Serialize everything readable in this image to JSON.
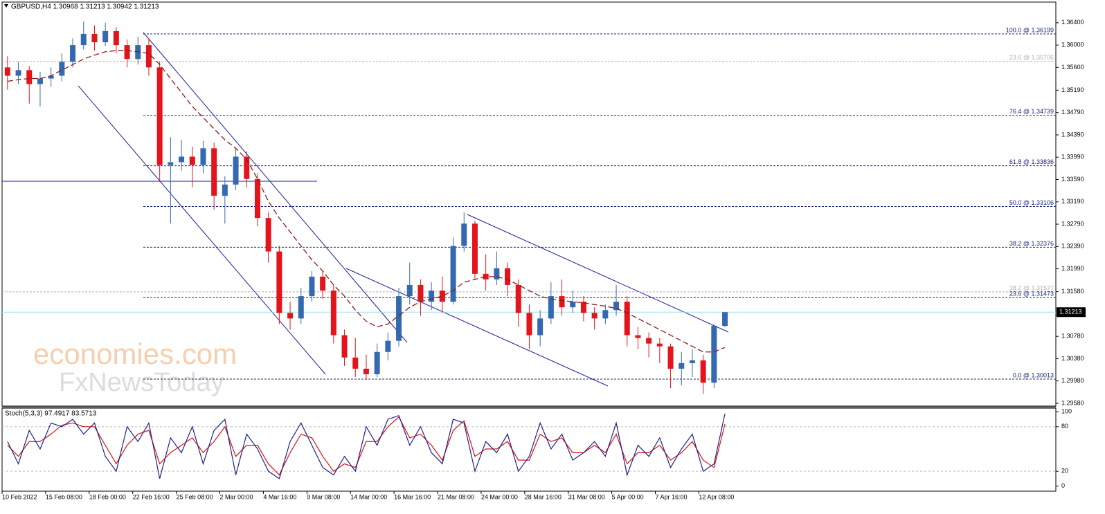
{
  "chart_data": {
    "type": "candlestick",
    "title": "GBPUSD,H4  1.30968 1.31213 1.30942 1.31213",
    "up_color": "#3468b0",
    "down_color": "#e3141c",
    "ylim": [
      1.2953,
      1.3677
    ],
    "yticks": [
      {
        "value": 1.364,
        "label": "1.36400"
      },
      {
        "value": 1.36,
        "label": "1.36000"
      },
      {
        "value": 1.356,
        "label": "1.35600"
      },
      {
        "value": 1.3519,
        "label": "1.35190"
      },
      {
        "value": 1.3479,
        "label": "1.34790"
      },
      {
        "value": 1.3439,
        "label": "1.34390"
      },
      {
        "value": 1.3399,
        "label": "1.33990"
      },
      {
        "value": 1.3359,
        "label": "1.33590"
      },
      {
        "value": 1.3319,
        "label": "1.33190"
      },
      {
        "value": 1.3279,
        "label": "1.32790"
      },
      {
        "value": 1.3239,
        "label": "1.32390"
      },
      {
        "value": 1.3199,
        "label": "1.31990"
      },
      {
        "value": 1.3158,
        "label": "1.31580"
      },
      {
        "value": 1.3078,
        "label": "1.30780"
      },
      {
        "value": 1.3038,
        "label": "1.30380"
      },
      {
        "value": 1.2998,
        "label": "1.29980"
      },
      {
        "value": 1.2958,
        "label": "1.29580"
      }
    ],
    "current_price": {
      "value": 1.31213,
      "label": "1.31213"
    },
    "xlabels": [
      "10 Feb 2022",
      "15 Feb 08:00",
      "18 Feb 00:00",
      "22 Feb 16:00",
      "25 Feb 08:00",
      "2 Mar 00:00",
      "4 Mar 16:00",
      "9 Mar 08:00",
      "14 Mar 00:00",
      "16 Mar 16:00",
      "21 Mar 08:00",
      "24 Mar 00:00",
      "28 Mar 16:00",
      "31 Mar 08:00",
      "5 Apr 00:00",
      "7 Apr 16:00",
      "12 Apr 08:00"
    ],
    "candles": [
      [
        1.356,
        1.358,
        1.352,
        1.3545
      ],
      [
        1.3545,
        1.357,
        1.353,
        1.3555
      ],
      [
        1.3555,
        1.3562,
        1.3495,
        1.353
      ],
      [
        1.353,
        1.3552,
        1.349,
        1.354
      ],
      [
        1.354,
        1.356,
        1.3525,
        1.3545
      ],
      [
        1.3545,
        1.3585,
        1.3535,
        1.357
      ],
      [
        1.357,
        1.3612,
        1.356,
        1.36
      ],
      [
        1.36,
        1.3642,
        1.3592,
        1.362
      ],
      [
        1.362,
        1.3635,
        1.359,
        1.3605
      ],
      [
        1.3605,
        1.364,
        1.3598,
        1.3625
      ],
      [
        1.3625,
        1.3632,
        1.3585,
        1.36
      ],
      [
        1.36,
        1.361,
        1.356,
        1.3575
      ],
      [
        1.3575,
        1.3615,
        1.3565,
        1.36
      ],
      [
        1.36,
        1.3612,
        1.3545,
        1.356
      ],
      [
        1.356,
        1.357,
        1.3355,
        1.3385
      ],
      [
        1.3385,
        1.3435,
        1.328,
        1.339
      ],
      [
        1.339,
        1.343,
        1.3375,
        1.34
      ],
      [
        1.34,
        1.3418,
        1.3345,
        1.3385
      ],
      [
        1.3385,
        1.3428,
        1.337,
        1.3415
      ],
      [
        1.3415,
        1.3425,
        1.3305,
        1.333
      ],
      [
        1.333,
        1.3365,
        1.328,
        1.335
      ],
      [
        1.335,
        1.3415,
        1.334,
        1.34
      ],
      [
        1.34,
        1.341,
        1.3345,
        1.336
      ],
      [
        1.336,
        1.337,
        1.3275,
        1.329
      ],
      [
        1.329,
        1.33,
        1.321,
        1.323
      ],
      [
        1.323,
        1.324,
        1.31,
        1.312
      ],
      [
        1.312,
        1.314,
        1.309,
        1.311
      ],
      [
        1.311,
        1.3165,
        1.31,
        1.315
      ],
      [
        1.315,
        1.3195,
        1.314,
        1.3185
      ],
      [
        1.3185,
        1.3195,
        1.3145,
        1.316
      ],
      [
        1.316,
        1.317,
        1.3065,
        1.308
      ],
      [
        1.308,
        1.309,
        1.3025,
        1.304
      ],
      [
        1.304,
        1.3075,
        1.3005,
        1.302
      ],
      [
        1.302,
        1.3045,
        1.3,
        1.301
      ],
      [
        1.301,
        1.3065,
        1.3005,
        1.305
      ],
      [
        1.305,
        1.3085,
        1.3035,
        1.307
      ],
      [
        1.307,
        1.3165,
        1.306,
        1.315
      ],
      [
        1.315,
        1.321,
        1.3135,
        1.317
      ],
      [
        1.317,
        1.318,
        1.3115,
        1.314
      ],
      [
        1.314,
        1.3175,
        1.3125,
        1.316
      ],
      [
        1.316,
        1.3185,
        1.312,
        1.314
      ],
      [
        1.314,
        1.3255,
        1.3135,
        1.324
      ],
      [
        1.324,
        1.33,
        1.323,
        1.328
      ],
      [
        1.328,
        1.3285,
        1.318,
        1.319
      ],
      [
        1.319,
        1.3225,
        1.316,
        1.318
      ],
      [
        1.318,
        1.323,
        1.317,
        1.32
      ],
      [
        1.32,
        1.321,
        1.315,
        1.317
      ],
      [
        1.317,
        1.318,
        1.3095,
        1.312
      ],
      [
        1.312,
        1.3135,
        1.3055,
        1.308
      ],
      [
        1.308,
        1.3125,
        1.306,
        1.311
      ],
      [
        1.311,
        1.3175,
        1.31,
        1.315
      ],
      [
        1.315,
        1.318,
        1.3115,
        1.313
      ],
      [
        1.313,
        1.316,
        1.312,
        1.314
      ],
      [
        1.314,
        1.315,
        1.3105,
        1.312
      ],
      [
        1.312,
        1.313,
        1.309,
        1.311
      ],
      [
        1.311,
        1.3135,
        1.31,
        1.3125
      ],
      [
        1.3125,
        1.317,
        1.3115,
        1.314
      ],
      [
        1.314,
        1.315,
        1.306,
        1.308
      ],
      [
        1.308,
        1.3095,
        1.3055,
        1.3075
      ],
      [
        1.3075,
        1.3085,
        1.304,
        1.3065
      ],
      [
        1.3065,
        1.3075,
        1.303,
        1.306
      ],
      [
        1.306,
        1.3065,
        1.2985,
        1.302
      ],
      [
        1.302,
        1.305,
        1.299,
        1.303
      ],
      [
        1.303,
        1.3055,
        1.3005,
        1.3035
      ],
      [
        1.3035,
        1.3045,
        1.2975,
        1.2995
      ],
      [
        1.2995,
        1.31,
        1.2985,
        1.3097
      ],
      [
        1.30968,
        1.31213,
        1.30942,
        1.31213
      ]
    ],
    "ma": {
      "color": "#8b1a1a",
      "values": [
        1.3535,
        1.3538,
        1.354,
        1.354,
        1.3545,
        1.3555,
        1.3565,
        1.3575,
        1.3582,
        1.3588,
        1.359,
        1.359,
        1.3588,
        1.3585,
        1.3565,
        1.354,
        1.3515,
        1.349,
        1.347,
        1.345,
        1.343,
        1.3415,
        1.3395,
        1.336,
        1.332,
        1.329,
        1.3265,
        1.324,
        1.3215,
        1.3195,
        1.317,
        1.315,
        1.3125,
        1.3105,
        1.3095,
        1.31,
        1.3115,
        1.313,
        1.314,
        1.3145,
        1.315,
        1.316,
        1.3175,
        1.318,
        1.3185,
        1.3185,
        1.318,
        1.317,
        1.316,
        1.315,
        1.3145,
        1.3142,
        1.314,
        1.3138,
        1.3135,
        1.3132,
        1.3128,
        1.312,
        1.311,
        1.31,
        1.309,
        1.308,
        1.307,
        1.306,
        1.305,
        1.305,
        1.3058
      ]
    },
    "fib_levels": [
      {
        "value": 1.36199,
        "label": "100.0 @ 1.36199"
      },
      {
        "value": 1.34739,
        "label": "76.4 @ 1.34739"
      },
      {
        "value": 1.33836,
        "label": "61.8 @ 1.33836"
      },
      {
        "value": 1.33106,
        "label": "50.0 @ 1.33106"
      },
      {
        "value": 1.32376,
        "label": "38.2 @ 1.32376"
      },
      {
        "value": 1.31473,
        "label": "23.6 @ 1.31473"
      },
      {
        "value": 1.30013,
        "label": "0.0 @ 1.30013"
      }
    ],
    "fib_color": "#1a237e",
    "fib_levels_2": [
      {
        "value": 1.35706,
        "label": "23.6 @ 1.35706"
      },
      {
        "value": 1.31577,
        "label": "38.2 @ 1.31577"
      }
    ],
    "fib_color_2": "#b0b0b0",
    "watermark": [
      "economies.com",
      "FxNewsToday"
    ],
    "stoch": {
      "label": "Stoch(5,3,3) 97.4917 83.5713",
      "ylim": [
        -5,
        105
      ],
      "yticks": [
        100,
        80,
        20,
        0
      ],
      "levels": [
        80,
        20
      ],
      "series": [
        {
          "color": "#1f1f8f",
          "values": [
            60,
            30,
            75,
            50,
            85,
            80,
            90,
            70,
            85,
            40,
            20,
            80,
            60,
            85,
            10,
            65,
            45,
            80,
            30,
            75,
            90,
            15,
            70,
            50,
            20,
            10,
            60,
            85,
            55,
            25,
            15,
            40,
            20,
            80,
            55,
            90,
            95,
            55,
            80,
            45,
            30,
            90,
            85,
            20,
            60,
            45,
            70,
            20,
            40,
            85,
            50,
            70,
            35,
            45,
            60,
            40,
            85,
            15,
            55,
            40,
            65,
            25,
            50,
            70,
            20,
            30,
            97.4917
          ]
        },
        {
          "color": "#e01010",
          "values": [
            55,
            40,
            60,
            60,
            70,
            82,
            85,
            80,
            80,
            55,
            30,
            55,
            70,
            75,
            30,
            45,
            55,
            65,
            45,
            60,
            80,
            40,
            55,
            55,
            30,
            15,
            45,
            70,
            65,
            40,
            20,
            30,
            25,
            60,
            60,
            80,
            93,
            65,
            70,
            55,
            35,
            75,
            88,
            40,
            50,
            50,
            60,
            35,
            35,
            70,
            60,
            65,
            45,
            45,
            55,
            45,
            70,
            30,
            45,
            45,
            55,
            35,
            45,
            60,
            35,
            25,
            83.5713
          ]
        }
      ]
    }
  }
}
